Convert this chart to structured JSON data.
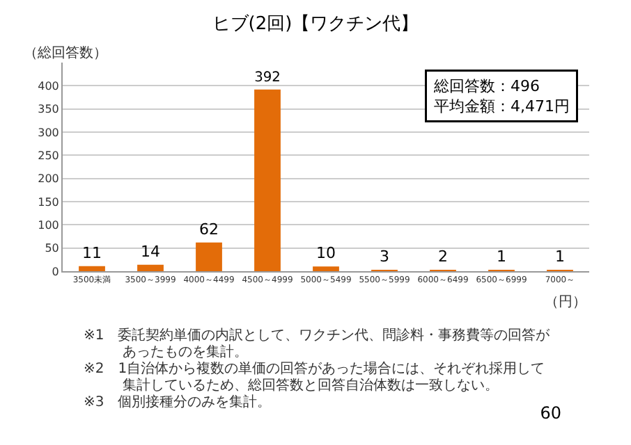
{
  "chart_data": {
    "type": "bar",
    "title": "ヒブ(2回)【ワクチン代】",
    "ylabel": "（総回答数）",
    "xlabel": "（円）",
    "categories": [
      "3500未満",
      "3500～3999",
      "4000～4499",
      "4500～4999",
      "5000～5499",
      "5500～5999",
      "6000～6499",
      "6500～6999",
      "7000～"
    ],
    "values": [
      11,
      14,
      62,
      392,
      10,
      3,
      2,
      1,
      1
    ],
    "color": "#e36c09",
    "ylim": [
      0,
      450
    ],
    "yticks": [
      0,
      50,
      100,
      150,
      200,
      250,
      300,
      350,
      400
    ],
    "grid": "y",
    "data_labels": true,
    "annotations": [
      "総回答数：496",
      "平均金額：4,471円",
      "※1　委託契約単価の内訳として、ワクチン代、問診料・事務費等の回答があったものを集計。",
      "※2　1自治体から複数の単価の回答があった場合には、それぞれ採用して集計しているため、総回答数と回答自治体数は一致しない。",
      "※3　個別接種分のみを集計。",
      "60"
    ]
  }
}
